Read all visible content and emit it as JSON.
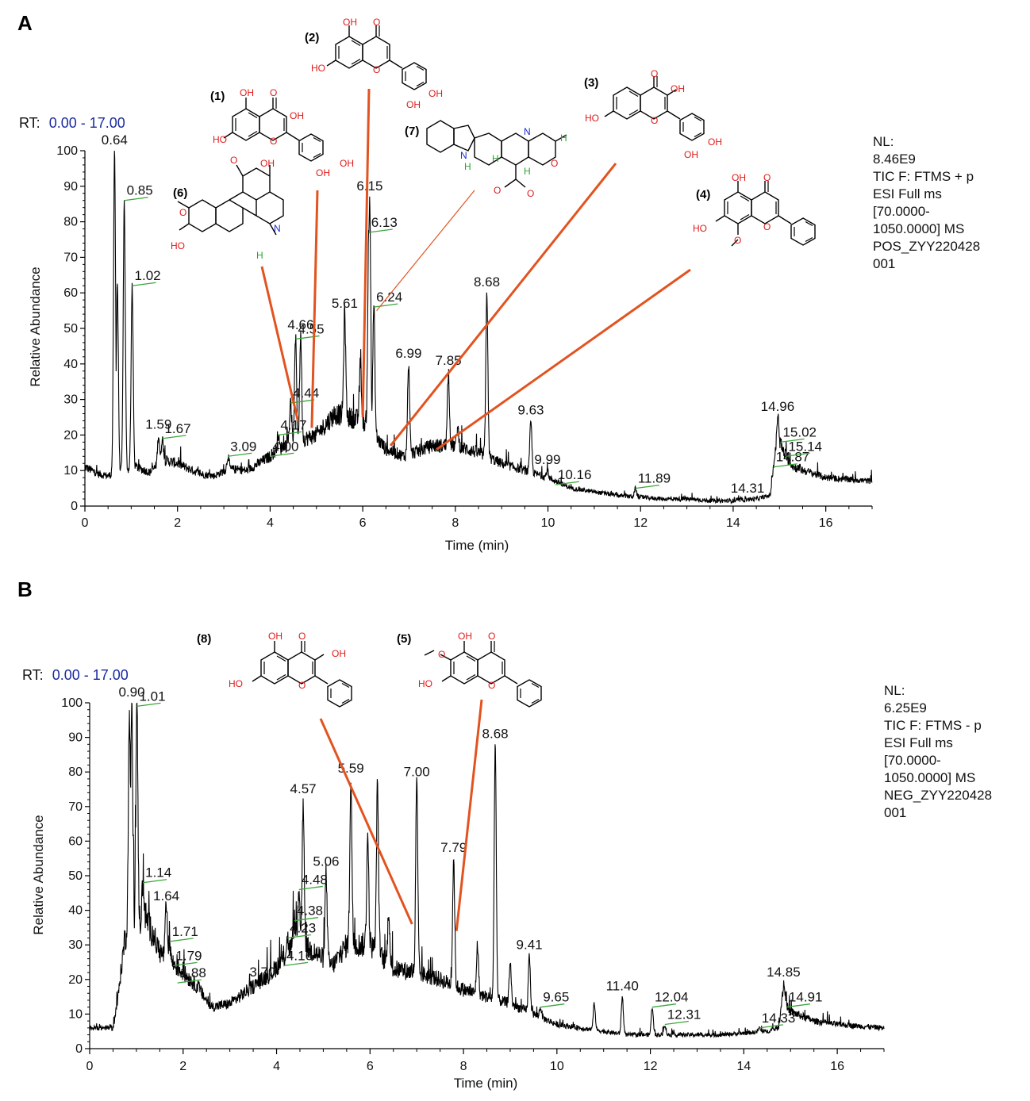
{
  "colors": {
    "trace": "#000000",
    "leader": "#e2531f",
    "tick_mark": "#3aa63a",
    "rt_value": "#1a2aa0",
    "oxygen": "#e01a1a",
    "nitrogen": "#1a2ad0",
    "hydrogen": "#2aa52a"
  },
  "chart_data": [
    {
      "type": "line",
      "panel": "A",
      "rt_prefix": "RT:",
      "rt_range": "0.00 - 17.00",
      "xlabel": "Time (min)",
      "ylabel": "Relative Abundance",
      "xlim": [
        0,
        17
      ],
      "ylim": [
        0,
        100
      ],
      "xticks": [
        "0",
        "2",
        "4",
        "6",
        "8",
        "10",
        "12",
        "14",
        "16"
      ],
      "yticks": [
        "0",
        "10",
        "20",
        "30",
        "40",
        "50",
        "60",
        "70",
        "80",
        "90",
        "100"
      ],
      "info": [
        "NL:",
        "8.46E9",
        "TIC F: FTMS + p",
        "ESI Full ms",
        "[70.0000-",
        "1050.0000]  MS",
        "POS_ZYY220428",
        "001"
      ],
      "baseline": [
        [
          0,
          11
        ],
        [
          0.3,
          9
        ],
        [
          0.5,
          8.5
        ],
        [
          0.58,
          9
        ],
        [
          1.1,
          11
        ],
        [
          1.4,
          9.5
        ],
        [
          1.7,
          13
        ],
        [
          2.0,
          12
        ],
        [
          2.5,
          9
        ],
        [
          2.8,
          8.5
        ],
        [
          3.1,
          10.5
        ],
        [
          3.5,
          10
        ],
        [
          4.0,
          14
        ],
        [
          4.3,
          17
        ],
        [
          5.0,
          20
        ],
        [
          5.4,
          26
        ],
        [
          6.0,
          24
        ],
        [
          6.5,
          16
        ],
        [
          6.9,
          14
        ],
        [
          7.5,
          17
        ],
        [
          8.0,
          17
        ],
        [
          8.5,
          15
        ],
        [
          9.0,
          12
        ],
        [
          9.5,
          10
        ],
        [
          10.0,
          8
        ],
        [
          10.5,
          5
        ],
        [
          11.0,
          4
        ],
        [
          11.5,
          3
        ],
        [
          12.0,
          2.5
        ],
        [
          12.5,
          2
        ],
        [
          13.0,
          2
        ],
        [
          13.5,
          1.5
        ],
        [
          14.0,
          1.5
        ],
        [
          14.5,
          2
        ],
        [
          14.8,
          3
        ],
        [
          14.9,
          14
        ],
        [
          15.0,
          17
        ],
        [
          15.3,
          11
        ],
        [
          16.0,
          8
        ],
        [
          17.0,
          7
        ]
      ],
      "peaks": [
        {
          "rt": 0.64,
          "y": 100,
          "label": "0.64",
          "style": "top"
        },
        {
          "rt": 0.7,
          "y": 63,
          "label": "",
          "style": "none"
        },
        {
          "rt": 0.85,
          "y": 86,
          "label": "0.85",
          "style": "tag"
        },
        {
          "rt": 1.02,
          "y": 62,
          "label": "1.02",
          "style": "tag"
        },
        {
          "rt": 1.59,
          "y": 20,
          "label": "1.59",
          "style": "top"
        },
        {
          "rt": 1.67,
          "y": 19,
          "label": "1.67",
          "style": "tag"
        },
        {
          "rt": 3.09,
          "y": 14,
          "label": "3.09",
          "style": "tag"
        },
        {
          "rt": 4.0,
          "y": 14,
          "label": "4.00",
          "style": "tag"
        },
        {
          "rt": 4.17,
          "y": 20,
          "label": "4.17",
          "style": "tag"
        },
        {
          "rt": 4.44,
          "y": 29,
          "label": "4.44",
          "style": "tag"
        },
        {
          "rt": 4.55,
          "y": 47,
          "label": "4.55",
          "style": "tag"
        },
        {
          "rt": 4.66,
          "y": 48,
          "label": "4.66",
          "style": "top"
        },
        {
          "rt": 5.61,
          "y": 54,
          "label": "5.61",
          "style": "top"
        },
        {
          "rt": 5.95,
          "y": 40,
          "label": "",
          "style": "none"
        },
        {
          "rt": 6.13,
          "y": 77,
          "label": "6.13",
          "style": "tag"
        },
        {
          "rt": 6.15,
          "y": 87,
          "label": "6.15",
          "style": "top"
        },
        {
          "rt": 6.24,
          "y": 56,
          "label": "6.24",
          "style": "tag"
        },
        {
          "rt": 6.99,
          "y": 40,
          "label": "6.99",
          "style": "top"
        },
        {
          "rt": 7.85,
          "y": 38,
          "label": "7.85",
          "style": "top"
        },
        {
          "rt": 8.05,
          "y": 22,
          "label": "",
          "style": "none"
        },
        {
          "rt": 8.68,
          "y": 60,
          "label": "8.68",
          "style": "top"
        },
        {
          "rt": 9.63,
          "y": 24,
          "label": "9.63",
          "style": "top"
        },
        {
          "rt": 9.99,
          "y": 10,
          "label": "9.99",
          "style": "top"
        },
        {
          "rt": 10.16,
          "y": 6,
          "label": "10.16",
          "style": "tag"
        },
        {
          "rt": 11.89,
          "y": 5,
          "label": "11.89",
          "style": "tag"
        },
        {
          "rt": 14.31,
          "y": 2,
          "label": "14.31",
          "style": "top"
        },
        {
          "rt": 14.87,
          "y": 11,
          "label": "14.87",
          "style": "tag"
        },
        {
          "rt": 14.96,
          "y": 25,
          "label": "14.96",
          "style": "top"
        },
        {
          "rt": 15.02,
          "y": 18,
          "label": "15.02",
          "style": "tag"
        },
        {
          "rt": 15.14,
          "y": 14,
          "label": "15.14",
          "style": "tag"
        }
      ]
    },
    {
      "type": "line",
      "panel": "B",
      "rt_prefix": "RT:",
      "rt_range": "0.00 - 17.00",
      "xlabel": "Time (min)",
      "ylabel": "Relative Abundance",
      "xlim": [
        0,
        17
      ],
      "ylim": [
        0,
        100
      ],
      "xticks": [
        "0",
        "2",
        "4",
        "6",
        "8",
        "10",
        "12",
        "14",
        "16"
      ],
      "yticks": [
        "0",
        "10",
        "20",
        "30",
        "40",
        "50",
        "60",
        "70",
        "80",
        "90",
        "100"
      ],
      "info": [
        "NL:",
        "6.25E9",
        "TIC F: FTMS - p",
        "ESI Full ms",
        "[70.0000-",
        "1050.0000]  MS",
        "NEG_ZYY220428",
        "001"
      ],
      "baseline": [
        [
          0,
          6
        ],
        [
          0.5,
          6
        ],
        [
          0.6,
          14
        ],
        [
          0.75,
          32
        ],
        [
          1.2,
          38
        ],
        [
          1.5,
          28
        ],
        [
          2.0,
          22
        ],
        [
          2.3,
          18
        ],
        [
          2.6,
          12
        ],
        [
          3.0,
          13
        ],
        [
          3.5,
          18
        ],
        [
          3.9,
          22
        ],
        [
          4.2,
          27
        ],
        [
          4.4,
          31
        ],
        [
          4.8,
          28
        ],
        [
          5.2,
          24
        ],
        [
          5.5,
          30
        ],
        [
          6.0,
          30
        ],
        [
          6.5,
          23
        ],
        [
          7.0,
          22
        ],
        [
          7.5,
          20
        ],
        [
          8.0,
          17
        ],
        [
          8.5,
          15
        ],
        [
          9.0,
          13
        ],
        [
          9.5,
          10
        ],
        [
          10.0,
          7
        ],
        [
          10.5,
          6
        ],
        [
          11.0,
          5
        ],
        [
          11.5,
          4
        ],
        [
          12.0,
          4
        ],
        [
          12.5,
          4
        ],
        [
          13.0,
          4
        ],
        [
          13.5,
          4
        ],
        [
          14.0,
          4.5
        ],
        [
          14.5,
          5
        ],
        [
          14.75,
          6
        ],
        [
          14.85,
          19
        ],
        [
          14.95,
          11
        ],
        [
          15.5,
          8
        ],
        [
          16.0,
          7
        ],
        [
          17.0,
          6
        ]
      ],
      "peaks": [
        {
          "rt": 0.85,
          "y": 97,
          "label": "",
          "style": "none"
        },
        {
          "rt": 0.9,
          "y": 100,
          "label": "0.90",
          "style": "top"
        },
        {
          "rt": 1.01,
          "y": 99,
          "label": "1.01",
          "style": "tag"
        },
        {
          "rt": 1.14,
          "y": 48,
          "label": "1.14",
          "style": "tag"
        },
        {
          "rt": 1.64,
          "y": 41,
          "label": "1.64",
          "style": "top"
        },
        {
          "rt": 1.71,
          "y": 31,
          "label": "1.71",
          "style": "tag"
        },
        {
          "rt": 1.79,
          "y": 24,
          "label": "1.79",
          "style": "tag"
        },
        {
          "rt": 1.88,
          "y": 19,
          "label": "1.88",
          "style": "tag"
        },
        {
          "rt": 3.7,
          "y": 19,
          "label": "3.70",
          "style": "top"
        },
        {
          "rt": 4.16,
          "y": 24,
          "label": "4.16",
          "style": "tag"
        },
        {
          "rt": 4.23,
          "y": 32,
          "label": "4.23",
          "style": "tag"
        },
        {
          "rt": 4.38,
          "y": 37,
          "label": "4.38",
          "style": "tag"
        },
        {
          "rt": 4.48,
          "y": 46,
          "label": "4.48",
          "style": "tag"
        },
        {
          "rt": 4.57,
          "y": 72,
          "label": "4.57",
          "style": "top"
        },
        {
          "rt": 5.06,
          "y": 51,
          "label": "5.06",
          "style": "top"
        },
        {
          "rt": 5.59,
          "y": 78,
          "label": "5.59",
          "style": "top"
        },
        {
          "rt": 5.95,
          "y": 61,
          "label": "",
          "style": "none"
        },
        {
          "rt": 6.16,
          "y": 76,
          "label": "",
          "style": "none"
        },
        {
          "rt": 6.4,
          "y": 40,
          "label": "",
          "style": "none"
        },
        {
          "rt": 7.0,
          "y": 77,
          "label": "7.00",
          "style": "top"
        },
        {
          "rt": 7.79,
          "y": 55,
          "label": "7.79",
          "style": "top"
        },
        {
          "rt": 8.3,
          "y": 30,
          "label": "",
          "style": "none"
        },
        {
          "rt": 8.68,
          "y": 88,
          "label": "8.68",
          "style": "top"
        },
        {
          "rt": 9.0,
          "y": 25,
          "label": "",
          "style": "none"
        },
        {
          "rt": 9.41,
          "y": 27,
          "label": "9.41",
          "style": "top"
        },
        {
          "rt": 9.65,
          "y": 12,
          "label": "9.65",
          "style": "tag"
        },
        {
          "rt": 10.8,
          "y": 13,
          "label": "",
          "style": "none"
        },
        {
          "rt": 11.4,
          "y": 15,
          "label": "11.40",
          "style": "top"
        },
        {
          "rt": 12.04,
          "y": 12,
          "label": "12.04",
          "style": "tag"
        },
        {
          "rt": 12.31,
          "y": 7,
          "label": "12.31",
          "style": "tag"
        },
        {
          "rt": 14.33,
          "y": 6,
          "label": "14.33",
          "style": "tag"
        },
        {
          "rt": 14.85,
          "y": 19,
          "label": "14.85",
          "style": "top"
        },
        {
          "rt": 14.91,
          "y": 12,
          "label": "14.91",
          "style": "tag"
        }
      ]
    }
  ],
  "compounds": [
    {
      "id": "(1)",
      "peak_rt": 4.9
    },
    {
      "id": "(2)",
      "peak_rt": 6.0
    },
    {
      "id": "(3)",
      "peak_rt": 6.6
    },
    {
      "id": "(4)",
      "peak_rt": 7.6
    },
    {
      "id": "(5)",
      "peak_rt": 7.85
    },
    {
      "id": "(6)",
      "peak_rt": 4.6
    },
    {
      "id": "(7)",
      "peak_rt": 6.3
    },
    {
      "id": "(8)",
      "peak_rt": 6.9
    }
  ],
  "atoms": {
    "OH": "OH",
    "O": "O",
    "N": "N",
    "H": "H",
    "HO": "HO",
    "NH": "N"
  }
}
